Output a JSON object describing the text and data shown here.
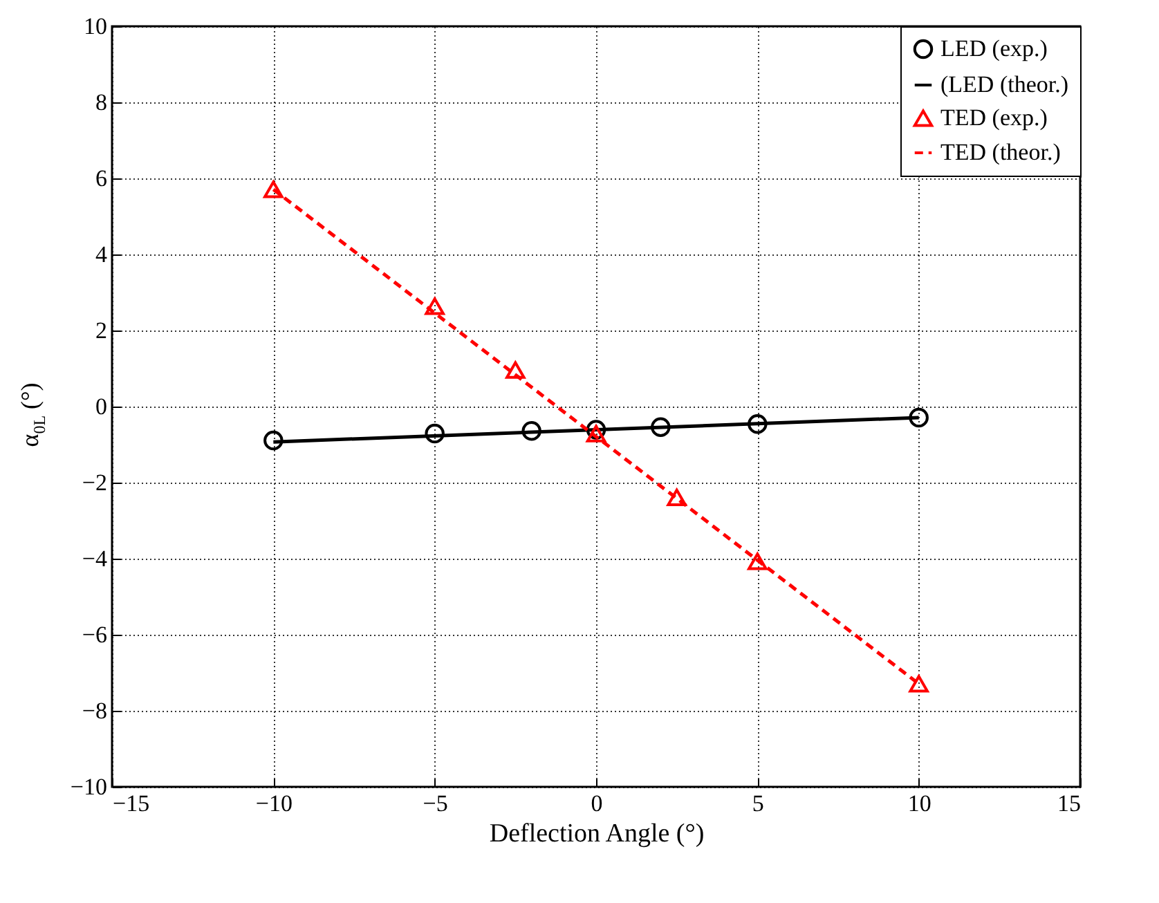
{
  "chart_data": {
    "type": "line",
    "xlabel": "Deflection Angle (°)",
    "ylabel": "α$_{0L}$ (°)",
    "xlim": [
      -15,
      15
    ],
    "xticks": [
      -15,
      -10,
      -5,
      0,
      5,
      10,
      15
    ],
    "ylim": [
      -10,
      10
    ],
    "yticks": [
      -10,
      -8,
      -6,
      -4,
      -2,
      0,
      2,
      4,
      6,
      8,
      10
    ],
    "grid": true,
    "legend": "top right",
    "series": [
      {
        "name": "LED (exp.)",
        "type": "scatter",
        "marker": "circle",
        "color": "#000000",
        "x": [
          -10,
          -5,
          -2,
          0,
          2,
          5,
          10
        ],
        "values": [
          -0.89,
          -0.71,
          -0.64,
          -0.61,
          -0.54,
          -0.46,
          -0.29
        ]
      },
      {
        "name": "(LED (theor.)",
        "line_style": "solid",
        "color": "#000000",
        "x": [
          -10,
          10
        ],
        "values": [
          -0.93,
          -0.29
        ]
      },
      {
        "name": "TED (exp.)",
        "type": "scatter",
        "marker": "triangle",
        "color": "#ff0000",
        "x": [
          -10,
          -5,
          -2.5,
          0,
          2.5,
          5,
          10
        ],
        "values": [
          5.71,
          2.64,
          0.96,
          -0.71,
          -2.39,
          -4.07,
          -7.29
        ]
      },
      {
        "name": "TED (theor.)",
        "line_style": "dashed",
        "color": "#ff0000",
        "x": [
          -10,
          10
        ],
        "values": [
          5.71,
          -7.29
        ]
      }
    ]
  }
}
